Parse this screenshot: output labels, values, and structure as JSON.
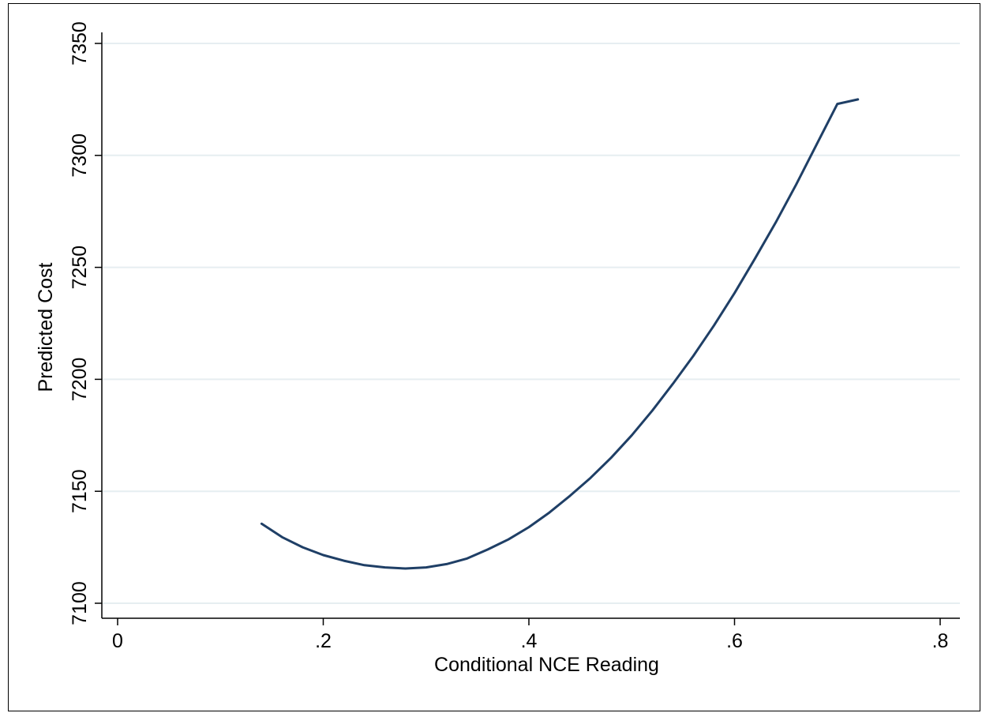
{
  "chart_data": {
    "type": "line",
    "title": "",
    "xlabel": "Conditional NCE Reading",
    "ylabel": "Predicted Cost",
    "xlim": [
      0,
      0.8
    ],
    "ylim": [
      7100,
      7350
    ],
    "x_ticks": [
      {
        "value": 0,
        "label": "0"
      },
      {
        "value": 0.2,
        "label": ".2"
      },
      {
        "value": 0.4,
        "label": ".4"
      },
      {
        "value": 0.6,
        "label": ".6"
      },
      {
        "value": 0.8,
        "label": ".8"
      }
    ],
    "y_ticks": [
      {
        "value": 7100,
        "label": "7100"
      },
      {
        "value": 7150,
        "label": "7150"
      },
      {
        "value": 7200,
        "label": "7200"
      },
      {
        "value": 7250,
        "label": "7250"
      },
      {
        "value": 7300,
        "label": "7300"
      },
      {
        "value": 7350,
        "label": "7350"
      }
    ],
    "grid": true,
    "series": [
      {
        "color": "#1f3f66",
        "x": [
          0.14,
          0.16,
          0.18,
          0.2,
          0.22,
          0.24,
          0.26,
          0.28,
          0.3,
          0.32,
          0.34,
          0.36,
          0.38,
          0.4,
          0.42,
          0.44,
          0.46,
          0.48,
          0.5,
          0.52,
          0.54,
          0.56,
          0.58,
          0.6,
          0.62,
          0.64,
          0.66,
          0.68,
          0.7,
          0.72
        ],
        "y": [
          7135.5,
          7129.5,
          7125.0,
          7121.5,
          7119.0,
          7117.0,
          7116.0,
          7115.5,
          7116.0,
          7117.5,
          7120.0,
          7124.0,
          7128.5,
          7134.0,
          7140.5,
          7148.0,
          7156.0,
          7165.0,
          7175.0,
          7186.0,
          7198.0,
          7210.5,
          7224.0,
          7238.5,
          7254.0,
          7270.0,
          7287.0,
          7305.0,
          7323.0,
          7325.0
        ]
      }
    ]
  }
}
